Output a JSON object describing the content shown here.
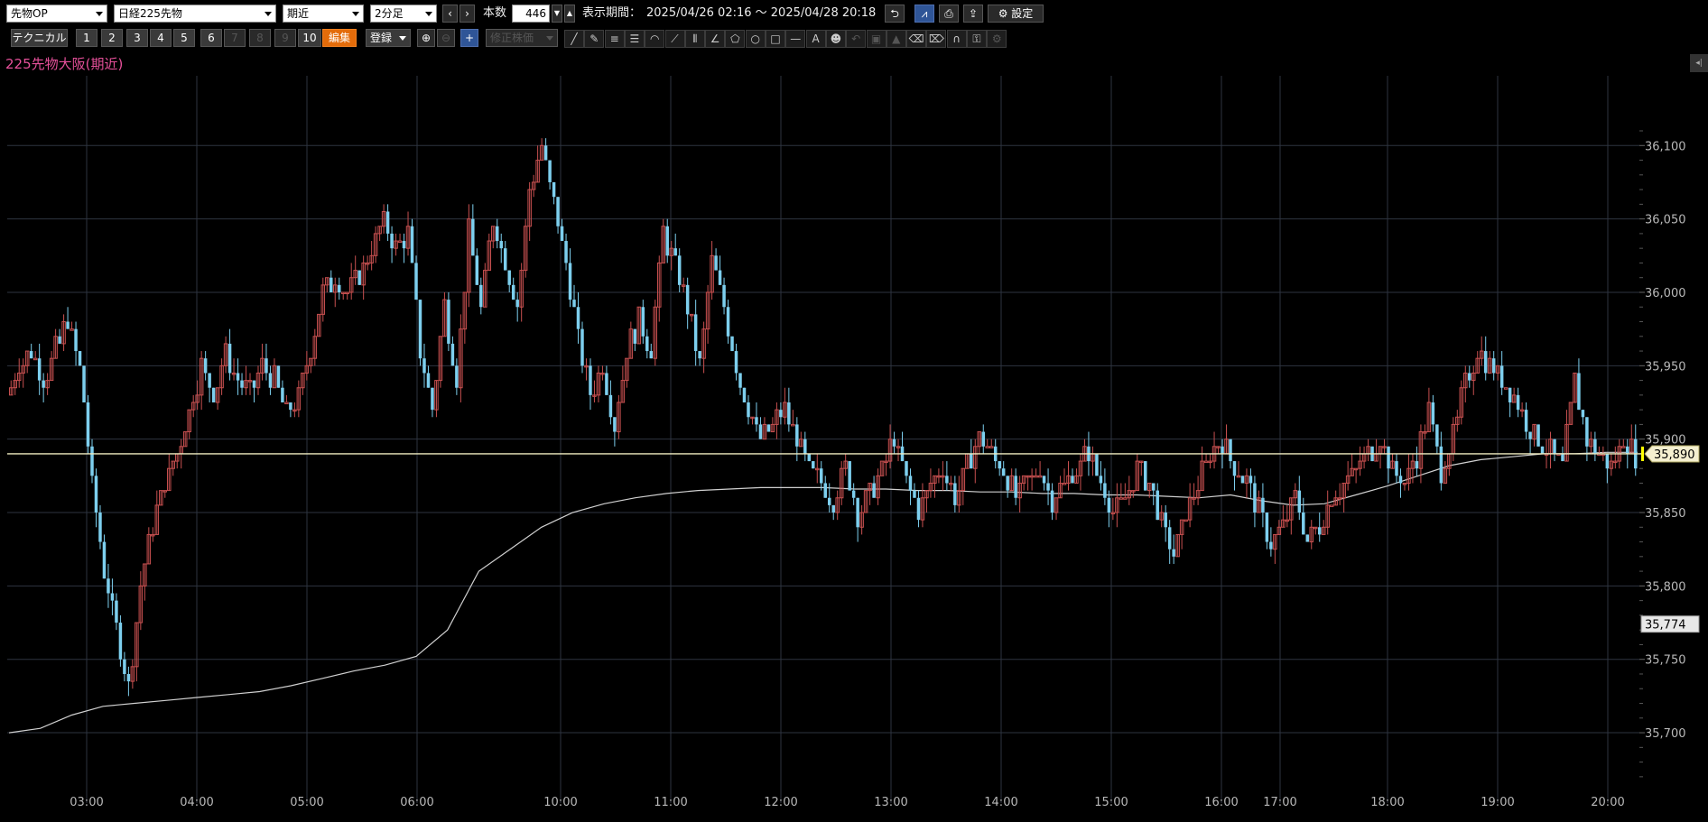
{
  "toolbar": {
    "product_select": "先物OP",
    "symbol_select": "日経225先物",
    "contract_select": "期近",
    "interval_select": "2分足",
    "bars_label": "本数",
    "bars_value": "446",
    "period_label": "表示期間：",
    "period_value": "2025/04/26 02:16 ～ 2025/04/28 20:18",
    "settings_label": "設定",
    "technical_label": "テクニカル",
    "numbered_buttons": [
      "1",
      "2",
      "3",
      "4",
      "5",
      "6",
      "7",
      "8",
      "9",
      "10"
    ],
    "edit_label": "編集",
    "register_label": "登録",
    "adjusted_label": "修正株価"
  },
  "colors": {
    "up": "#c85050",
    "down": "#7dcfee",
    "vwap": "#d0d0d0",
    "grid": "#2e3440",
    "title": "#e6509a",
    "last_price_marker": "#ffff00"
  },
  "chart_data": {
    "type": "candlestick",
    "title": "225先物大阪(期近)",
    "ylim": [
      35665,
      36118
    ],
    "y_ticks": [
      "36,100",
      "36,050",
      "36,000",
      "35,950",
      "35,900",
      "35,850",
      "35,800",
      "35,750",
      "35,700"
    ],
    "x_ticks": [
      "03:00",
      "04:00",
      "05:00",
      "06:00",
      "10:00",
      "11:00",
      "12:00",
      "13:00",
      "14:00",
      "15:00",
      "16:00",
      "17:00",
      "18:00",
      "19:00",
      "20:00"
    ],
    "last_price": 35890,
    "last_price_label": "35,890",
    "marker_value": 35774,
    "marker_label": "35,774",
    "grid": true,
    "series": [
      {
        "style": "candles",
        "path": [
          35930,
          35950,
          35960,
          35940,
          35960,
          35980,
          35950,
          35870,
          35810,
          35770,
          35730,
          35800,
          35840,
          35870,
          35890,
          35920,
          35950,
          35930,
          35960,
          35940,
          35930,
          35950,
          35940,
          35920,
          35930,
          35960,
          36000,
          36010,
          36000,
          36010,
          36030,
          36050,
          36030,
          36040,
          35960,
          35920,
          35990,
          35940,
          36040,
          35990,
          36050,
          36020,
          35990,
          36070,
          36100,
          36060,
          36020,
          35970,
          35930,
          35950,
          35910,
          35960,
          35980,
          35960,
          36040,
          36020,
          35990,
          35950,
          36020,
          35990,
          35950,
          35920,
          35900,
          35910,
          35920,
          35900,
          35880,
          35870,
          35860,
          35880,
          35850,
          35860,
          35880,
          35900,
          35870,
          35850,
          35870,
          35880,
          35860,
          35880,
          35900,
          35890,
          35880,
          35860,
          35870,
          35880,
          35860,
          35870,
          35880,
          35890,
          35870,
          35850,
          35860,
          35880,
          35870,
          35840,
          35820,
          35850,
          35870,
          35890,
          35900,
          35880,
          35870,
          35850,
          35830,
          35840,
          35860,
          35830,
          35840,
          35860,
          35870,
          35880,
          35890,
          35900,
          35880,
          35870,
          35890,
          35920,
          35880,
          35900,
          35940,
          35960,
          35950,
          35940,
          35930,
          35910,
          35900,
          35890,
          35880,
          35940,
          35900,
          35890,
          35880,
          35900,
          35890
        ]
      },
      {
        "style": "vwap-line",
        "path": [
          35700,
          35703,
          35712,
          35718,
          35720,
          35722,
          35724,
          35726,
          35728,
          35732,
          35737,
          35742,
          35746,
          35752,
          35770,
          35810,
          35825,
          35840,
          35850,
          35856,
          35860,
          35863,
          35865,
          35866,
          35867,
          35867,
          35867,
          35866,
          35866,
          35865,
          35865,
          35864,
          35864,
          35863,
          35863,
          35862,
          35862,
          35861,
          35860,
          35862,
          35858,
          35855,
          35856,
          35862,
          35868,
          35875,
          35882,
          35886,
          35888,
          35890,
          35890,
          35891,
          35891
        ]
      }
    ]
  }
}
